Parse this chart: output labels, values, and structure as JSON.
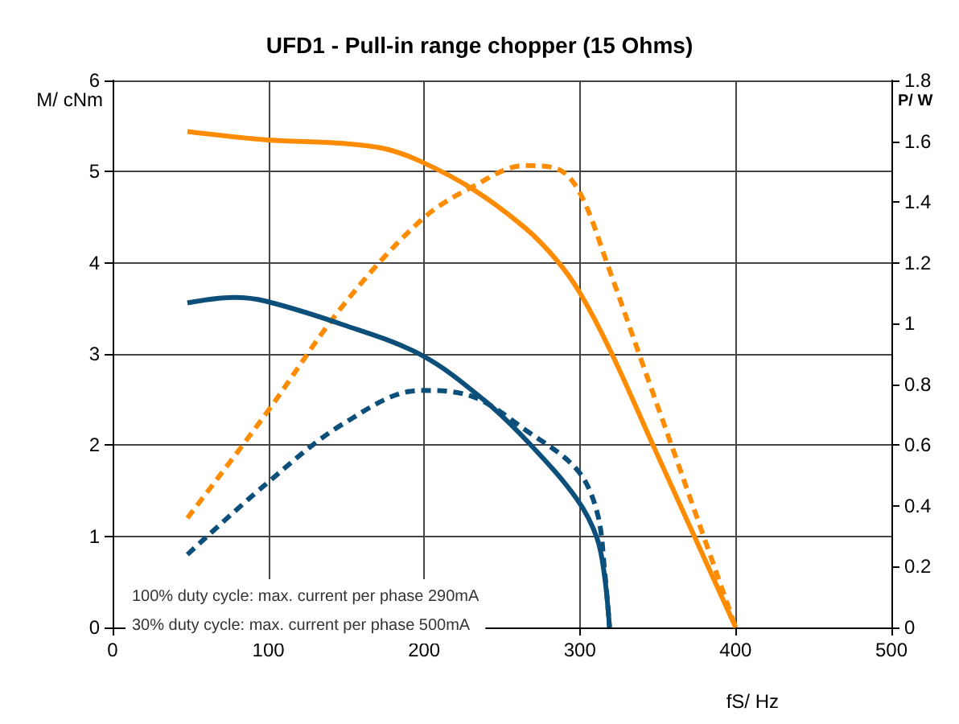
{
  "chart_data": {
    "type": "line",
    "title": "UFD1 - Pull-in range chopper (15 Ohms)",
    "xlabel": "fS/ Hz",
    "ylabel": "M/ cNm",
    "y2label": "P/ W",
    "xlim": [
      0,
      500
    ],
    "xticks": [
      0,
      100,
      200,
      300,
      400,
      500
    ],
    "ylim": [
      0,
      6
    ],
    "yticks": [
      0,
      1,
      2,
      3,
      4,
      5,
      6
    ],
    "y2lim": [
      0,
      1.8
    ],
    "y2ticks": [
      0,
      0.2,
      0.4,
      0.6,
      0.8,
      1,
      1.2,
      1.4,
      1.6,
      1.8
    ],
    "grid": true,
    "marker": "none",
    "series": [
      {
        "color": "#ff8c00",
        "line_style": "solid",
        "x": [
          48,
          98,
          148,
          175,
          198,
          231,
          265,
          285,
          300,
          320,
          348,
          400
        ],
        "values": [
          5.44,
          5.35,
          5.31,
          5.25,
          5.11,
          4.81,
          4.38,
          4.03,
          3.67,
          3.02,
          1.96,
          0
        ]
      },
      {
        "color": "#ff8c00",
        "line_style": "dashed",
        "axis": "y2",
        "x": [
          48,
          98,
          148,
          198,
          231,
          265,
          285,
          300,
          318,
          338,
          365,
          400
        ],
        "values": [
          0.36,
          0.7,
          1.06,
          1.34,
          1.45,
          1.52,
          1.51,
          1.43,
          1.19,
          0.9,
          0.51,
          0
        ]
      },
      {
        "color": "#0b4f7a",
        "line_style": "solid",
        "x": [
          48,
          78,
          98,
          148,
          198,
          238,
          268,
          298,
          311,
          316,
          319
        ],
        "values": [
          3.56,
          3.62,
          3.58,
          3.32,
          2.99,
          2.5,
          2.01,
          1.41,
          0.98,
          0.54,
          0
        ]
      },
      {
        "color": "#0b4f7a",
        "line_style": "dashed",
        "axis": "y2",
        "x": [
          48,
          98,
          148,
          198,
          231,
          265,
          298,
          311,
          316,
          319
        ],
        "values": [
          0.24,
          0.47,
          0.67,
          0.78,
          0.76,
          0.65,
          0.52,
          0.38,
          0.18,
          0
        ]
      }
    ],
    "annotations": [
      "100% duty cycle: max. current per phase 290mA",
      "30% duty cycle: max. current per phase 500mA"
    ]
  }
}
